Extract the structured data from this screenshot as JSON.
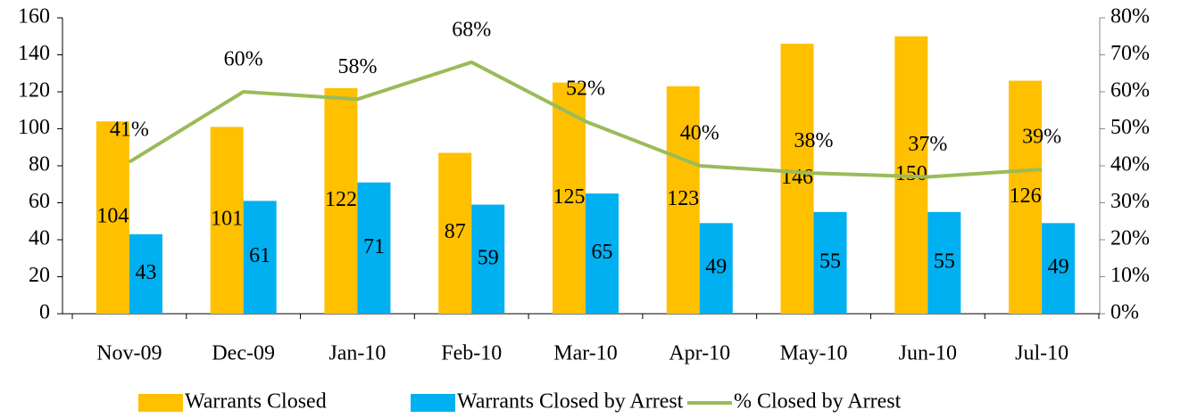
{
  "chart_data": {
    "type": "bar_line",
    "categories": [
      "Nov-09",
      "Dec-09",
      "Jan-10",
      "Feb-10",
      "Mar-10",
      "Apr-10",
      "May-10",
      "Jun-10",
      "Jul-10"
    ],
    "series": [
      {
        "name": "Warrants Closed",
        "type": "bar",
        "color": "#FFC000",
        "values": [
          104,
          101,
          122,
          87,
          125,
          123,
          146,
          150,
          126
        ]
      },
      {
        "name": "Warrants Closed by Arrest",
        "type": "bar",
        "color": "#00B0F0",
        "values": [
          43,
          61,
          71,
          59,
          65,
          49,
          55,
          55,
          49
        ]
      },
      {
        "name": "% Closed by Arrest",
        "type": "line",
        "axis": "y2",
        "color": "#9BBB59",
        "values": [
          41,
          60,
          58,
          68,
          52,
          40,
          38,
          37,
          39
        ],
        "value_labels": [
          "41%",
          "60%",
          "58%",
          "68%",
          "52%",
          "40%",
          "38%",
          "37%",
          "39%"
        ]
      }
    ],
    "ylim": [
      0,
      160
    ],
    "yticks": [
      0,
      20,
      40,
      60,
      80,
      100,
      120,
      140,
      160
    ],
    "y2lim": [
      0,
      80
    ],
    "y2ticks": [
      {
        "value": 0,
        "label": "0%"
      },
      {
        "value": 10,
        "label": "10%"
      },
      {
        "value": 20,
        "label": "20%"
      },
      {
        "value": 30,
        "label": "30%"
      },
      {
        "value": 40,
        "label": "40%"
      },
      {
        "value": 50,
        "label": "50%"
      },
      {
        "value": 60,
        "label": "60%"
      },
      {
        "value": 70,
        "label": "70%"
      },
      {
        "value": 80,
        "label": "80%"
      }
    ],
    "legend": "bottom"
  }
}
